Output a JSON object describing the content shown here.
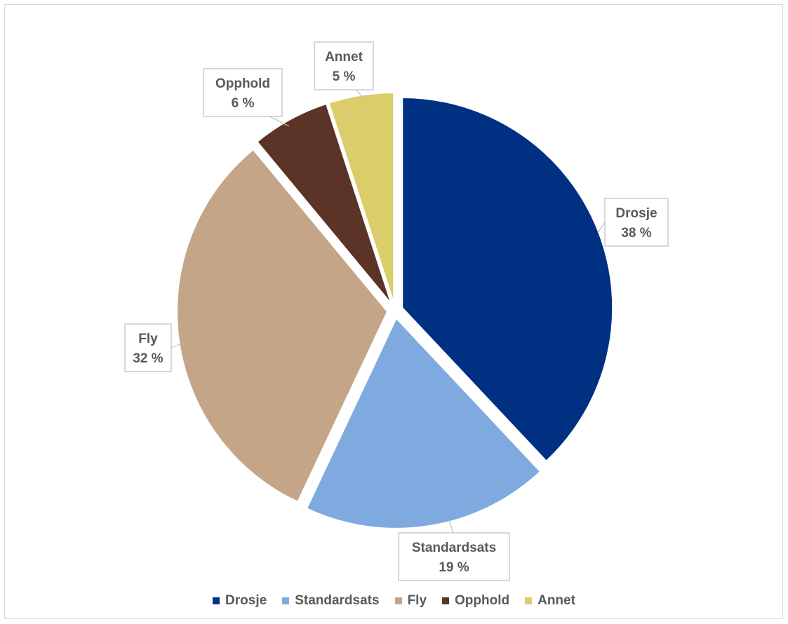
{
  "chart_data": {
    "type": "pie",
    "title": "",
    "legend_position": "bottom",
    "unit": "%",
    "slices": [
      {
        "label": "Drosje",
        "value": 38,
        "value_text": "38 %",
        "color": "#003082"
      },
      {
        "label": "Standardsats",
        "value": 19,
        "value_text": "19 %",
        "color": "#7faadf"
      },
      {
        "label": "Fly",
        "value": 32,
        "value_text": "32 %",
        "color": "#c4a587"
      },
      {
        "label": "Opphold",
        "value": 6,
        "value_text": "6 %",
        "color": "#5c3327"
      },
      {
        "label": "Annet",
        "value": 5,
        "value_text": "5 %",
        "color": "#dacd6a"
      }
    ]
  }
}
